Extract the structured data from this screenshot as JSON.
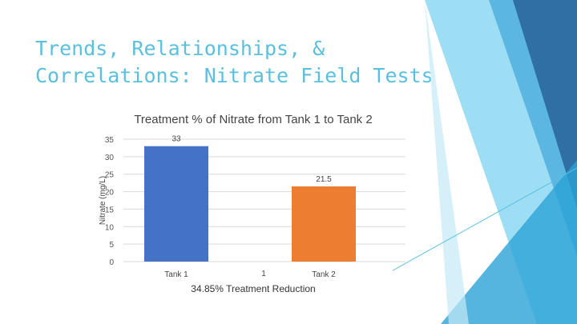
{
  "slide": {
    "title_line1": "Trends, Relationships, &",
    "title_line2": "Correlations: Nitrate Field Tests"
  },
  "colors": {
    "title": "#5bc0de",
    "tank1": "#4472c4",
    "tank2": "#ed7d31",
    "accent_light": "#6fcfee",
    "accent_dark": "#2f6fa3"
  },
  "chart_data": {
    "type": "bar",
    "title": "Treatment % of Nitrate from Tank 1 to Tank 2",
    "ylabel": "Nitrate (mg/L)",
    "xlabel": "1",
    "categories": [
      "Tank 1",
      "Tank 2"
    ],
    "values": [
      33,
      21.5
    ],
    "value_labels": [
      "33",
      "21.5"
    ],
    "ylim": [
      0,
      35
    ],
    "yticks": [
      0,
      5,
      10,
      15,
      20,
      25,
      30,
      35
    ],
    "grid": true,
    "footer": "34.85% Treatment Reduction"
  }
}
